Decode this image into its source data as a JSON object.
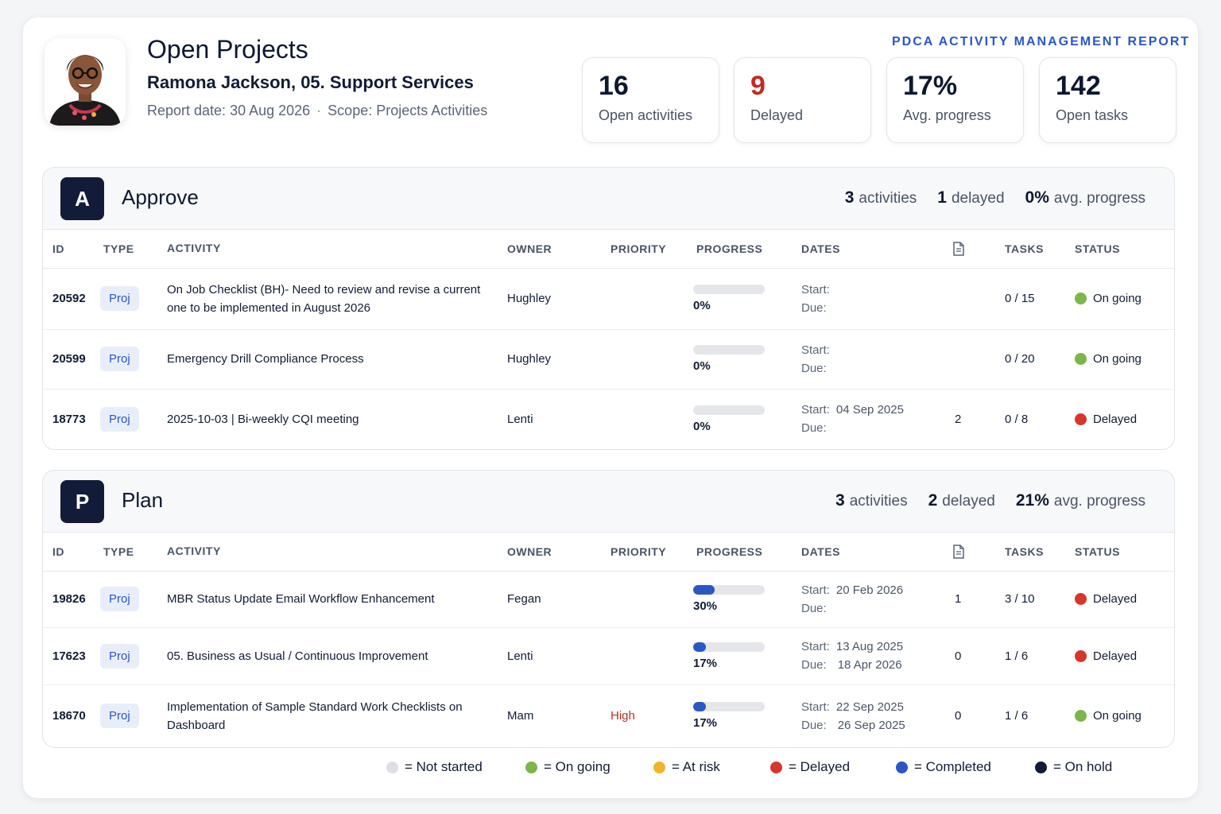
{
  "header": {
    "title": "Open Projects",
    "subtitle": "Ramona Jackson, 05. Support Services",
    "report_date": "Report date: 30 Aug 2026",
    "scope": "Scope: Projects Activities",
    "report_label": "PDCA ACTIVITY MANAGEMENT REPORT"
  },
  "stats": [
    {
      "value": "16",
      "label": "Open activities"
    },
    {
      "value": "9",
      "label": "Delayed"
    },
    {
      "value": "17%",
      "label": "Avg. progress"
    },
    {
      "value": "142",
      "label": "Open tasks"
    }
  ],
  "columns": [
    "ID",
    "TYPE",
    "ACTIVITY",
    "OWNER",
    "PRIORITY",
    "PROGRESS",
    "DATES",
    "TASKS",
    "STATUS"
  ],
  "date_labels": {
    "start": "Start:",
    "due": "Due:"
  },
  "sections": [
    {
      "badge": "A",
      "name": "Approve",
      "activities": "3",
      "activities_label": "activities",
      "delayed": "1",
      "delayed_label": "delayed",
      "avg": "0%",
      "avg_label": "avg. progress",
      "rows": [
        {
          "id": "20592",
          "type": "Proj",
          "activity": "On Job Checklist (BH)- Need to review and revise a current one to be implemented in August 2026",
          "owner": "Hughley",
          "priority": "",
          "progress": 0,
          "progress_label": "0%",
          "start": "",
          "due": "",
          "docs": "",
          "tasks": "0 / 15",
          "status": "On going",
          "status_color": "#7ab648"
        },
        {
          "id": "20599",
          "type": "Proj",
          "activity": "Emergency Drill Compliance Process",
          "owner": "Hughley",
          "priority": "",
          "progress": 0,
          "progress_label": "0%",
          "start": "",
          "due": "",
          "docs": "",
          "tasks": "0 / 20",
          "status": "On going",
          "status_color": "#7ab648"
        },
        {
          "id": "18773",
          "type": "Proj",
          "activity": "2025-10-03 | Bi-weekly CQI meeting",
          "owner": "Lenti",
          "priority": "",
          "progress": 0,
          "progress_label": "0%",
          "start": "04 Sep 2025",
          "due": "",
          "docs": "2",
          "tasks": "0 / 8",
          "status": "Delayed",
          "status_color": "#d6362b"
        }
      ]
    },
    {
      "badge": "P",
      "name": "Plan",
      "activities": "3",
      "activities_label": "activities",
      "delayed": "2",
      "delayed_label": "delayed",
      "avg": "21%",
      "avg_label": "avg. progress",
      "rows": [
        {
          "id": "19826",
          "type": "Proj",
          "activity": "MBR Status Update Email Workflow Enhancement",
          "owner": "Fegan",
          "priority": "",
          "progress": 30,
          "progress_label": "30%",
          "start": "20 Feb 2026",
          "due": "",
          "docs": "1",
          "tasks": "3 / 10",
          "status": "Delayed",
          "status_color": "#d6362b"
        },
        {
          "id": "17623",
          "type": "Proj",
          "activity": "05. Business as Usual / Continuous Improvement",
          "owner": "Lenti",
          "priority": "",
          "progress": 17,
          "progress_label": "17%",
          "start": "13 Aug 2025",
          "due": "18 Apr 2026",
          "docs": "0",
          "tasks": "1 / 6",
          "status": "Delayed",
          "status_color": "#d6362b"
        },
        {
          "id": "18670",
          "type": "Proj",
          "activity": "Implementation of Sample Standard Work Checklists on Dashboard",
          "owner": "Mam",
          "priority": "High",
          "progress": 17,
          "progress_label": "17%",
          "start": "22 Sep 2025",
          "due": "26 Sep 2025",
          "docs": "0",
          "tasks": "1 / 6",
          "status": "On going",
          "status_color": "#7ab648"
        }
      ]
    }
  ],
  "legend": [
    {
      "label": "= Not started",
      "color": "#dcdfe4"
    },
    {
      "label": "= On going",
      "color": "#7ab648"
    },
    {
      "label": "= At risk",
      "color": "#f0b429"
    },
    {
      "label": "= Delayed",
      "color": "#d6362b"
    },
    {
      "label": "= Completed",
      "color": "#2a56c6"
    },
    {
      "label": "= On hold",
      "color": "#121c38"
    }
  ]
}
